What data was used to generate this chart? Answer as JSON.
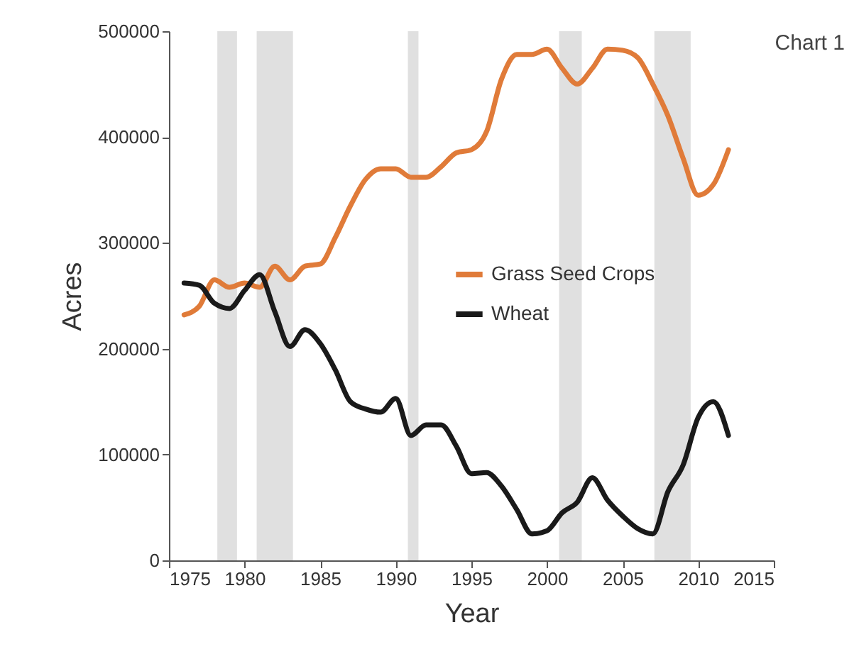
{
  "chart_data": {
    "type": "line",
    "xlabel": "Year",
    "ylabel": "Acres",
    "annotations": [
      "Chart 1"
    ],
    "x": [
      1976,
      1977,
      1978,
      1979,
      1980,
      1981,
      1982,
      1983,
      1984,
      1985,
      1986,
      1987,
      1988,
      1989,
      1990,
      1991,
      1992,
      1993,
      1994,
      1995,
      1996,
      1997,
      1998,
      1999,
      2000,
      2001,
      2002,
      2003,
      2004,
      2005,
      2006,
      2007,
      2008,
      2009,
      2010,
      2011,
      2012
    ],
    "series": [
      {
        "name": "Grass Seed Crops",
        "color": "#e07b39",
        "values": [
          232000,
          240000,
          265000,
          258000,
          262000,
          258000,
          278000,
          265000,
          278000,
          280000,
          305000,
          335000,
          360000,
          370000,
          370000,
          362000,
          362000,
          372000,
          385000,
          388000,
          405000,
          455000,
          478000,
          478000,
          483000,
          465000,
          450000,
          465000,
          483000,
          482000,
          475000,
          450000,
          420000,
          380000,
          345000,
          355000,
          388000
        ]
      },
      {
        "name": "Wheat",
        "color": "#1a1a1a",
        "values": [
          262000,
          260000,
          243000,
          238000,
          255000,
          270000,
          235000,
          202000,
          218000,
          205000,
          180000,
          150000,
          143000,
          140000,
          153000,
          118000,
          128000,
          128000,
          108000,
          82000,
          83000,
          70000,
          48000,
          25000,
          28000,
          45000,
          55000,
          78000,
          57000,
          42000,
          30000,
          25000,
          65000,
          90000,
          135000,
          150000,
          118000
        ]
      }
    ],
    "bands": [
      {
        "axis": "x",
        "from": 1978.2,
        "to": 1979.5,
        "color": "#e0e0e0"
      },
      {
        "axis": "x",
        "from": 1980.8,
        "to": 1983.2,
        "color": "#e0e0e0"
      },
      {
        "axis": "x",
        "from": 1990.8,
        "to": 1991.5,
        "color": "#e0e0e0"
      },
      {
        "axis": "x",
        "from": 2000.8,
        "to": 2002.3,
        "color": "#e0e0e0"
      },
      {
        "axis": "x",
        "from": 2007.1,
        "to": 2009.5,
        "color": "#e0e0e0"
      }
    ],
    "xlim": [
      1975,
      2015
    ],
    "xticks": [
      1975,
      1980,
      1985,
      1990,
      1995,
      2000,
      2005,
      2010,
      2015
    ],
    "ylim": [
      0,
      500000
    ],
    "yticks": [
      0,
      100000,
      200000,
      300000,
      400000,
      500000
    ],
    "grid": false,
    "legend": "right",
    "marker": "none",
    "line_style": "solid"
  }
}
